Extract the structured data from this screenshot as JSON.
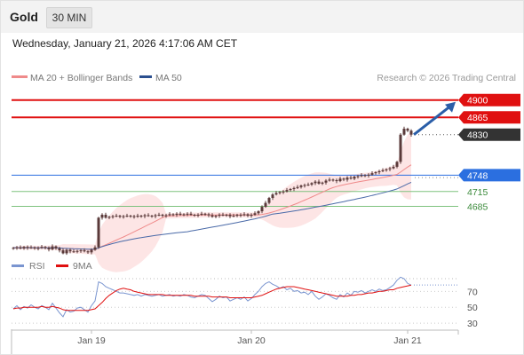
{
  "header": {
    "symbol": "Gold",
    "timeframe": "30 MIN",
    "datetime": "Wednesday, January 21, 2026 4:17:06 AM CET"
  },
  "legend": {
    "ma20_label": "MA 20 + Bollinger Bands",
    "ma50_label": "MA 50",
    "credit": "Research © 2026 Trading Central"
  },
  "rsi_legend": {
    "rsi_label": "RSI",
    "ma_label": "9MA"
  },
  "colors": {
    "candle": "#5a3a3a",
    "ma20": "#ef8a8a",
    "bollinger_fill": "#fde0e0",
    "ma50": "#4a6aa8",
    "resistance": "#e01010",
    "pivot": "#2b6fe0",
    "support": "#7ec27e",
    "current_price": "#333333",
    "arrow": "#2a5ea8",
    "rsi": "#7a95d0",
    "rsi_ma": "#e01010"
  },
  "chart_data": [
    {
      "type": "candlestick",
      "title": "Gold",
      "ylim": [
        4580,
        4930
      ],
      "levels": [
        {
          "value": 4900,
          "label": "4900",
          "role": "resistance"
        },
        {
          "value": 4865,
          "label": "4865",
          "role": "resistance"
        },
        {
          "value": 4830,
          "label": "4830",
          "role": "current"
        },
        {
          "value": 4748,
          "label": "4748",
          "role": "pivot"
        },
        {
          "value": 4715,
          "label": "4715",
          "role": "support"
        },
        {
          "value": 4685,
          "label": "4685",
          "role": "support"
        }
      ],
      "x_ticks": [
        {
          "label": "Jan 19",
          "bar": 22
        },
        {
          "label": "Jan 20",
          "bar": 67
        },
        {
          "label": "Jan 21",
          "bar": 111
        }
      ],
      "projection_arrow": {
        "from": 4830,
        "to": 4900
      },
      "series": [
        {
          "name": "MA 20 + Bollinger Bands",
          "kind": "band_with_ma"
        },
        {
          "name": "MA 50",
          "kind": "ma"
        }
      ],
      "closes": [
        4601,
        4602,
        4600,
        4603,
        4601,
        4602,
        4600,
        4601,
        4603,
        4601,
        4598,
        4604,
        4600,
        4596,
        4590,
        4597,
        4594,
        4593,
        4595,
        4596,
        4594,
        4592,
        4597,
        4602,
        4662,
        4668,
        4662,
        4664,
        4665,
        4666,
        4664,
        4665,
        4666,
        4665,
        4664,
        4666,
        4665,
        4667,
        4666,
        4665,
        4667,
        4668,
        4666,
        4667,
        4669,
        4668,
        4670,
        4668,
        4669,
        4670,
        4668,
        4667,
        4668,
        4670,
        4669,
        4667,
        4664,
        4666,
        4668,
        4667,
        4668,
        4665,
        4666,
        4668,
        4667,
        4669,
        4666,
        4668,
        4671,
        4675,
        4684,
        4692,
        4702,
        4709,
        4712,
        4714,
        4715,
        4718,
        4720,
        4722,
        4724,
        4727,
        4728,
        4729,
        4732,
        4735,
        4731,
        4733,
        4737,
        4739,
        4738,
        4736,
        4741,
        4739,
        4743,
        4741,
        4745,
        4746,
        4748,
        4747,
        4749,
        4752,
        4754,
        4756,
        4758,
        4760,
        4762,
        4765,
        4775,
        4830,
        4842,
        4838,
        4830
      ]
    },
    {
      "type": "line",
      "title": "RSI",
      "ylim": [
        20,
        95
      ],
      "y_ticks": [
        70,
        50,
        30
      ],
      "series": [
        {
          "name": "RSI",
          "values": [
            48,
            52,
            47,
            51,
            49,
            53,
            50,
            48,
            52,
            50,
            47,
            55,
            49,
            43,
            38,
            47,
            44,
            45,
            49,
            50,
            47,
            44,
            52,
            58,
            82,
            80,
            76,
            74,
            72,
            70,
            68,
            68,
            67,
            66,
            65,
            66,
            64,
            66,
            65,
            64,
            65,
            66,
            64,
            65,
            66,
            64,
            65,
            64,
            66,
            65,
            63,
            62,
            64,
            66,
            65,
            61,
            57,
            60,
            64,
            62,
            63,
            58,
            60,
            62,
            60,
            63,
            58,
            61,
            66,
            70,
            76,
            80,
            82,
            79,
            77,
            74,
            76,
            72,
            74,
            70,
            71,
            68,
            69,
            66,
            70,
            64,
            60,
            63,
            67,
            65,
            62,
            60,
            66,
            63,
            68,
            65,
            70,
            69,
            71,
            68,
            70,
            72,
            70,
            73,
            71,
            72,
            75,
            78,
            84,
            88,
            86,
            80,
            78
          ]
        },
        {
          "name": "9MA",
          "values": [
            48,
            49,
            49,
            50,
            50,
            50,
            50,
            50,
            51,
            50,
            50,
            51,
            50,
            49,
            47,
            46,
            46,
            46,
            46,
            46,
            46,
            46,
            47,
            48,
            52,
            56,
            61,
            65,
            68,
            71,
            73,
            74,
            73,
            72,
            70,
            69,
            68,
            67,
            66,
            66,
            66,
            66,
            66,
            65,
            65,
            65,
            65,
            65,
            65,
            65,
            65,
            64,
            64,
            64,
            64,
            64,
            63,
            63,
            63,
            63,
            63,
            62,
            62,
            62,
            62,
            62,
            62,
            62,
            63,
            64,
            65,
            67,
            69,
            71,
            73,
            74,
            75,
            76,
            76,
            76,
            75,
            74,
            73,
            72,
            71,
            70,
            69,
            68,
            67,
            66,
            65,
            64,
            64,
            64,
            64,
            65,
            65,
            66,
            66,
            67,
            68,
            68,
            69,
            70,
            70,
            71,
            72,
            72,
            74,
            75,
            76,
            77,
            78
          ]
        }
      ]
    }
  ]
}
